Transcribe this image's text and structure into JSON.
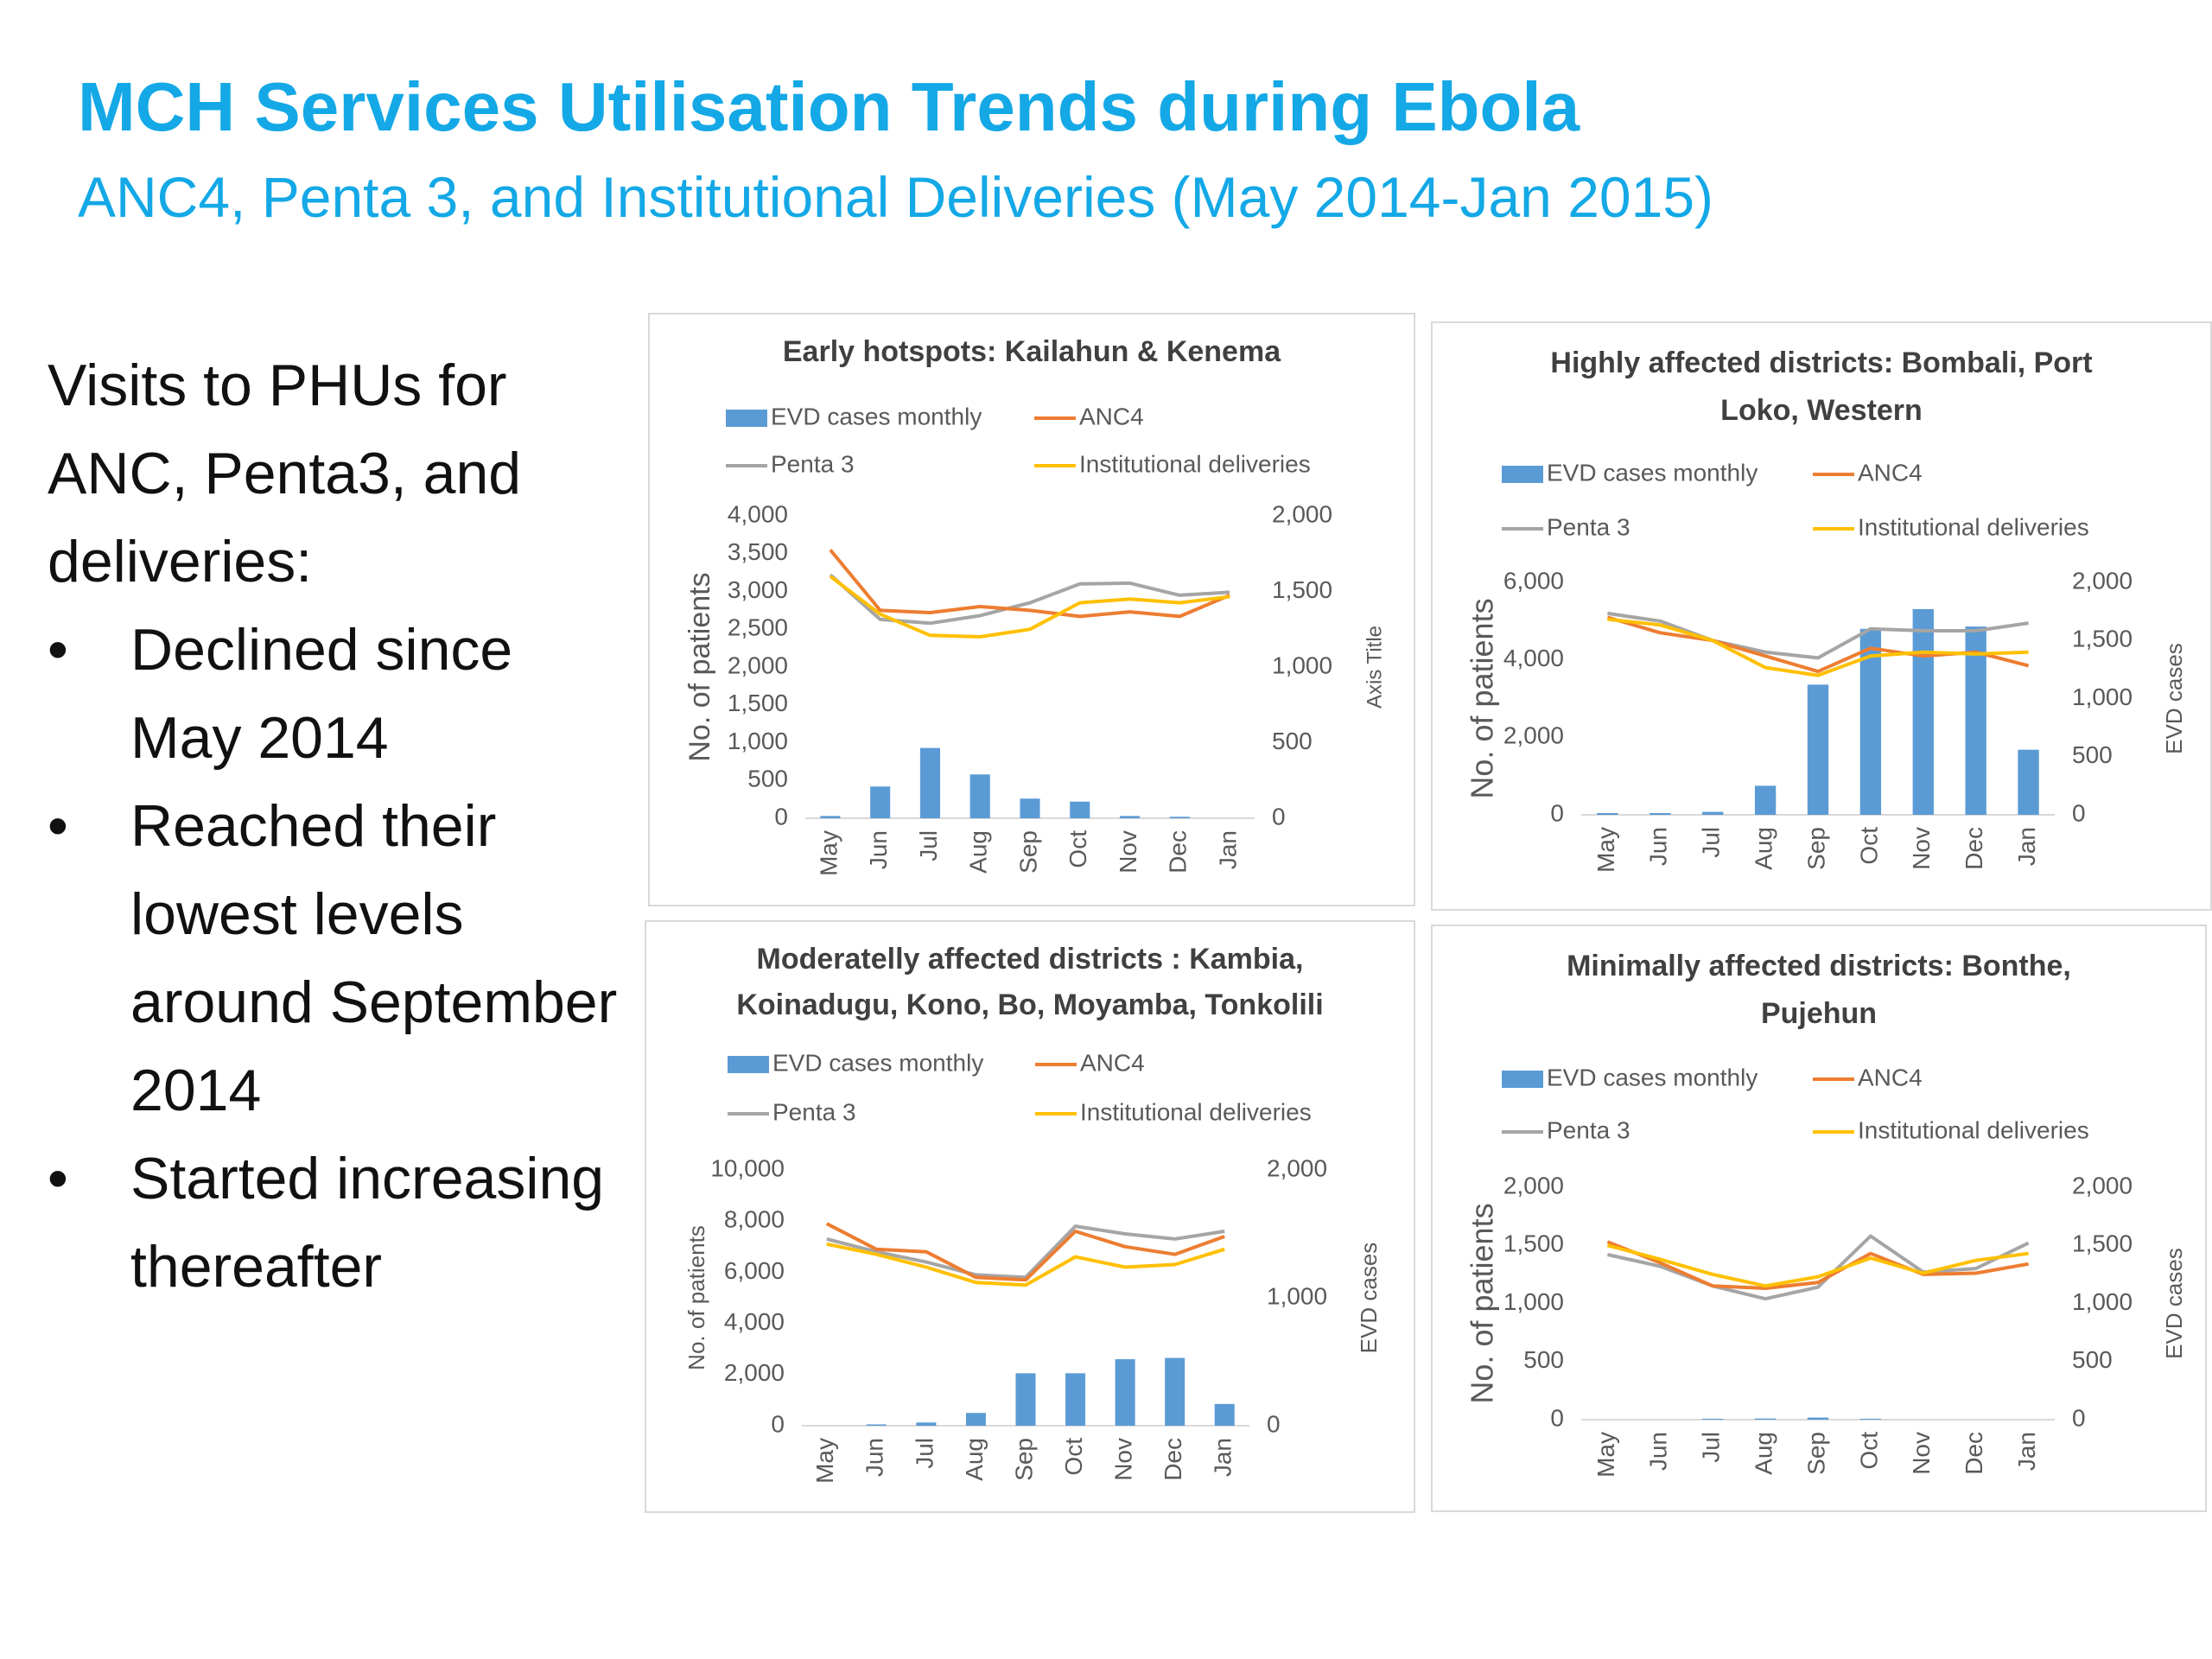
{
  "slide": {
    "title": "MCH Services Utilisation Trends during Ebola",
    "subtitle": "ANC4, Penta 3, and Institutional Deliveries (May 2014-Jan 2015)",
    "lead": "Visits to PHUs for ANC, Penta3, and deliveries:",
    "bullets": [
      "Declined since May 2014",
      "Reached their lowest levels around September 2014",
      "Started increasing thereafter"
    ]
  },
  "colors": {
    "evd": "#5b9bd5",
    "anc4": "#ed7d31",
    "penta3": "#a5a5a5",
    "inst": "#ffc000",
    "axis_text": "#595959",
    "title_text": "#404040"
  },
  "chart_data": [
    {
      "type": "bar",
      "title_lines": [
        "Early hotspots: Kailahun & Kenema"
      ],
      "categories": [
        "May",
        "Jun",
        "Jul",
        "Aug",
        "Sep",
        "Oct",
        "Nov",
        "Dec",
        "Jan"
      ],
      "legend_labels": [
        "EVD cases monthly",
        "ANC4",
        "Penta 3",
        "Institutional deliveries"
      ],
      "ylabel": "No. of patients",
      "y2label": "Axis Title",
      "ylim": [
        0,
        4000
      ],
      "yticks": [
        "4,000",
        "3,500",
        "3,000",
        "2,500",
        "2,000",
        "1,500",
        "1,000",
        "500",
        "0"
      ],
      "y2lim": [
        0,
        2000
      ],
      "y2ticks": [
        "2,000",
        "1,500",
        "1,000",
        "500",
        "0"
      ],
      "evd": [
        15,
        210,
        465,
        290,
        130,
        110,
        15,
        10,
        0
      ],
      "anc4": [
        3550,
        2750,
        2720,
        2800,
        2750,
        2670,
        2730,
        2670,
        2950
      ],
      "penta3": [
        3220,
        2630,
        2580,
        2680,
        2850,
        3100,
        3110,
        2950,
        2990
      ],
      "inst": [
        3200,
        2700,
        2420,
        2400,
        2500,
        2850,
        2900,
        2850,
        2930
      ]
    },
    {
      "type": "bar",
      "title_lines": [
        "Highly affected districts: Bombali, Port",
        "Loko, Western"
      ],
      "categories": [
        "May",
        "Jun",
        "Jul",
        "Aug",
        "Sep",
        "Oct",
        "Nov",
        "Dec",
        "Jan"
      ],
      "legend_labels": [
        "EVD cases monthly",
        "ANC4",
        "Penta 3",
        "Institutional deliveries"
      ],
      "ylabel": "No. of patients",
      "y2label": "EVD cases",
      "ylim": [
        0,
        6000
      ],
      "yticks": [
        "6,000",
        "4,000",
        "2,000",
        "0"
      ],
      "y2lim": [
        0,
        2000
      ],
      "y2ticks": [
        "2,000",
        "1,500",
        "1,000",
        "500",
        "0"
      ],
      "evd": [
        15,
        15,
        25,
        250,
        1120,
        1600,
        1770,
        1620,
        560
      ],
      "anc4": [
        5100,
        4700,
        4500,
        4100,
        3700,
        4300,
        4100,
        4200,
        3850
      ],
      "penta3": [
        5200,
        5000,
        4500,
        4200,
        4050,
        4800,
        4750,
        4750,
        4950
      ],
      "inst": [
        5050,
        4900,
        4500,
        3800,
        3600,
        4100,
        4200,
        4150,
        4200
      ]
    },
    {
      "type": "bar",
      "title_lines": [
        "Moderatelly affected districts : Kambia,",
        "Koinadugu, Kono, Bo, Moyamba, Tonkolili"
      ],
      "categories": [
        "May",
        "Jun",
        "Jul",
        "Aug",
        "Sep",
        "Oct",
        "Nov",
        "Dec",
        "Jan"
      ],
      "legend_labels": [
        "EVD cases monthly",
        "ANC4",
        "Penta 3",
        "Institutional deliveries"
      ],
      "ylabel": "No. of patients",
      "y2label": "EVD cases",
      "ylim": [
        0,
        10000
      ],
      "yticks": [
        "10,000",
        "8,000",
        "6,000",
        "4,000",
        "2,000",
        "0"
      ],
      "y2lim": [
        0,
        2000
      ],
      "y2ticks": [
        "2,000",
        "1,000",
        "0"
      ],
      "evd": [
        0,
        10,
        25,
        100,
        410,
        410,
        520,
        530,
        170
      ],
      "anc4": [
        7900,
        6900,
        6800,
        5800,
        5700,
        7600,
        7000,
        6700,
        7400
      ],
      "penta3": [
        7300,
        6800,
        6400,
        5900,
        5800,
        7800,
        7500,
        7300,
        7600
      ],
      "inst": [
        7100,
        6700,
        6200,
        5600,
        5500,
        6600,
        6200,
        6300,
        6900
      ]
    },
    {
      "type": "bar",
      "title_lines": [
        "Minimally affected districts: Bonthe,",
        "Pujehun"
      ],
      "categories": [
        "May",
        "Jun",
        "Jul",
        "Aug",
        "Sep",
        "Oct",
        "Nov",
        "Dec",
        "Jan"
      ],
      "legend_labels": [
        "EVD cases monthly",
        "ANC4",
        "Penta 3",
        "Institutional deliveries"
      ],
      "ylabel": "No. of patients",
      "y2label": "EVD cases",
      "ylim": [
        0,
        2000
      ],
      "yticks": [
        "2,000",
        "1,500",
        "1,000",
        "500",
        "0"
      ],
      "y2lim": [
        0,
        2000
      ],
      "y2ticks": [
        "2,000",
        "1,500",
        "1,000",
        "500",
        "0"
      ],
      "evd": [
        0,
        0,
        8,
        10,
        18,
        8,
        0,
        0,
        0
      ],
      "anc4": [
        1530,
        1350,
        1150,
        1130,
        1180,
        1430,
        1250,
        1260,
        1340
      ],
      "penta3": [
        1420,
        1320,
        1150,
        1040,
        1140,
        1580,
        1270,
        1300,
        1520
      ],
      "inst": [
        1500,
        1380,
        1250,
        1150,
        1230,
        1390,
        1260,
        1370,
        1430
      ]
    }
  ]
}
